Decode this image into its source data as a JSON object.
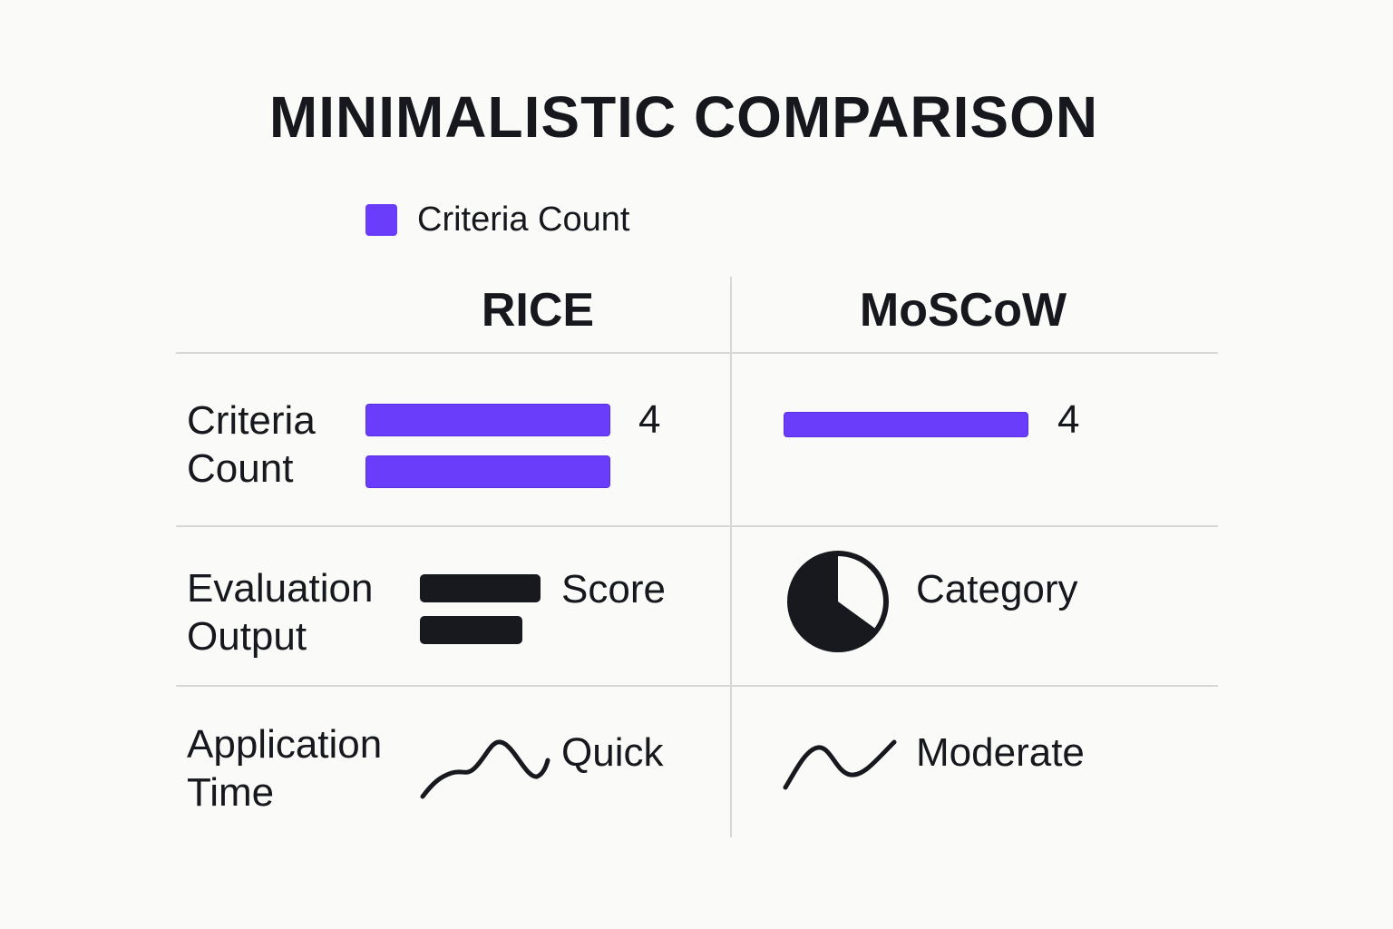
{
  "chart_data": {
    "type": "table",
    "title": "MINIMALISTIC COMPARISON",
    "legend": [
      {
        "label": "Criteria Count",
        "color": "#6a3dfa"
      }
    ],
    "columns": [
      "RICE",
      "MoSCoW"
    ],
    "rows": [
      {
        "label": "Criteria\nCount",
        "cells": [
          {
            "value": 4,
            "bars": [
              4,
              4
            ],
            "label": "4"
          },
          {
            "value": 4,
            "bars": [
              4
            ],
            "label": "4"
          }
        ]
      },
      {
        "label": "Evaluation\nOutput",
        "cells": [
          {
            "text": "Score",
            "icon": "bar-icon"
          },
          {
            "text": "Category",
            "icon": "pie-icon",
            "pie_fraction": 0.35
          }
        ]
      },
      {
        "label": "Application\nTime",
        "cells": [
          {
            "text": "Quick",
            "icon": "wave-icon"
          },
          {
            "text": "Moderate",
            "icon": "zigzag-icon"
          }
        ]
      }
    ]
  },
  "colors": {
    "accent": "#6a3dfa",
    "ink": "#17191e",
    "grid": "#d7d7d7"
  }
}
